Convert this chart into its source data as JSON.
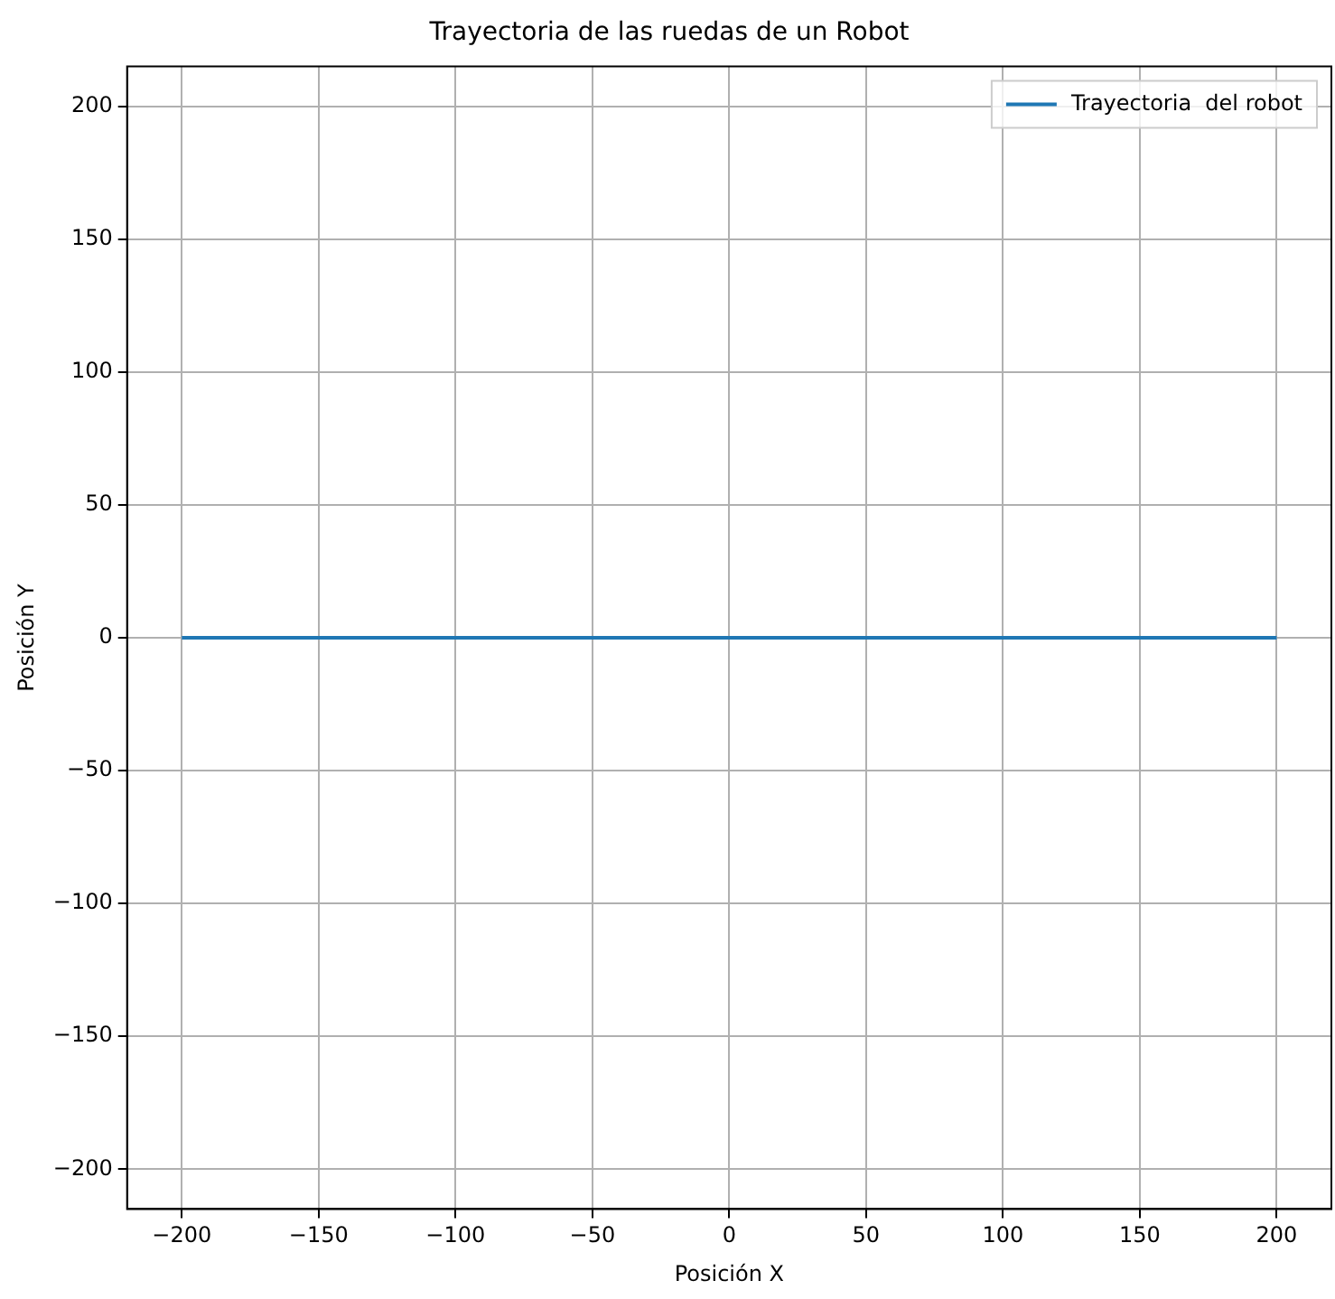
{
  "chart_data": {
    "type": "line",
    "title": "Trayectoria de las ruedas de un Robot",
    "xlabel": "Posición X",
    "ylabel": "Posición Y",
    "x": [
      -200,
      200
    ],
    "series": [
      {
        "name": "Trayectoria  del robot",
        "color": "#1f77b4",
        "values": [
          0,
          0
        ]
      }
    ],
    "xlim": [
      -220,
      220
    ],
    "ylim": [
      -215,
      215
    ],
    "xticks": [
      {
        "value": -200,
        "label": "−200"
      },
      {
        "value": -150,
        "label": "−150"
      },
      {
        "value": -100,
        "label": "−100"
      },
      {
        "value": -50,
        "label": "−50"
      },
      0,
      50,
      100,
      150,
      200
    ],
    "yticks": [
      {
        "value": -200,
        "label": "−200"
      },
      {
        "value": -150,
        "label": "−150"
      },
      {
        "value": -100,
        "label": "−100"
      },
      {
        "value": -50,
        "label": "−50"
      },
      0,
      50,
      100,
      150,
      200
    ],
    "grid": true,
    "legend": "top right",
    "marker": "none",
    "line_style": "solid"
  }
}
